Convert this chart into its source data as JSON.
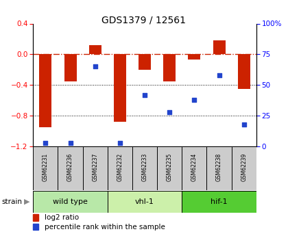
{
  "title": "GDS1379 / 12561",
  "samples": [
    "GSM62231",
    "GSM62236",
    "GSM62237",
    "GSM62232",
    "GSM62233",
    "GSM62235",
    "GSM62234",
    "GSM62238",
    "GSM62239"
  ],
  "log2_ratios": [
    -0.95,
    -0.35,
    0.12,
    -0.88,
    -0.2,
    -0.35,
    -0.07,
    0.18,
    -0.45
  ],
  "percentile_ranks": [
    3,
    3,
    65,
    3,
    42,
    28,
    38,
    58,
    18
  ],
  "groups": [
    {
      "label": "wild type",
      "start": 0,
      "end": 3,
      "color": "#b8e8a8"
    },
    {
      "label": "vhl-1",
      "start": 3,
      "end": 6,
      "color": "#ccf0aa"
    },
    {
      "label": "hif-1",
      "start": 6,
      "end": 9,
      "color": "#55cc33"
    }
  ],
  "ylim_left": [
    -1.2,
    0.4
  ],
  "ylim_right": [
    0,
    100
  ],
  "bar_color": "#cc2200",
  "dot_color": "#2244cc",
  "zero_line_color": "#cc2200",
  "bg_color": "#ffffff",
  "strain_label": "strain",
  "legend_bar": "log2 ratio",
  "legend_dot": "percentile rank within the sample",
  "sample_box_color": "#cccccc",
  "right_tick_label_100": "100%"
}
